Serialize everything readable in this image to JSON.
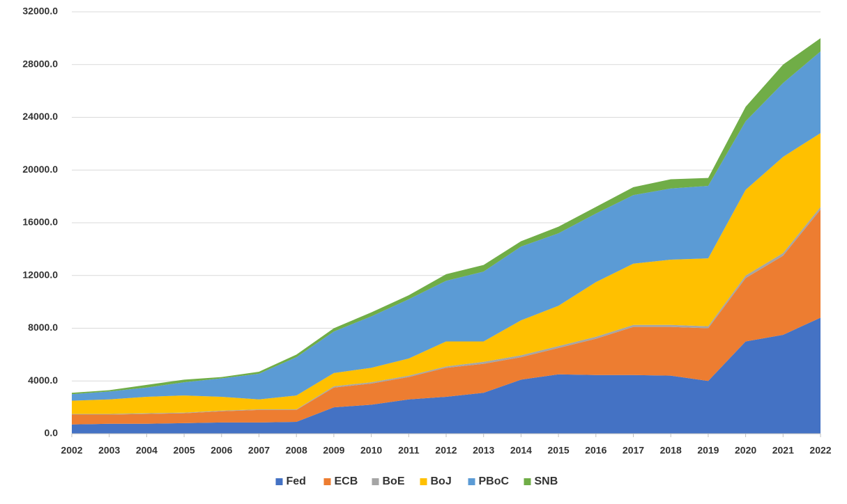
{
  "chart_data": {
    "type": "stacked_area",
    "x": [
      2002,
      2003,
      2004,
      2005,
      2006,
      2007,
      2008,
      2009,
      2010,
      2011,
      2012,
      2013,
      2014,
      2015,
      2016,
      2017,
      2018,
      2019,
      2020,
      2021,
      2022
    ],
    "xlim": [
      2002,
      2022
    ],
    "xticks": [
      2002,
      2003,
      2004,
      2005,
      2006,
      2007,
      2008,
      2009,
      2010,
      2011,
      2012,
      2013,
      2014,
      2015,
      2016,
      2017,
      2018,
      2019,
      2020,
      2021,
      2022
    ],
    "ylim": [
      0,
      32000
    ],
    "yticks": [
      {
        "value": 0,
        "label": "0.0"
      },
      {
        "value": 4000,
        "label": "4000.0"
      },
      {
        "value": 8000,
        "label": "8000.0"
      },
      {
        "value": 12000,
        "label": "12000.0"
      },
      {
        "value": 16000,
        "label": "16000.0"
      },
      {
        "value": 20000,
        "label": "20000.0"
      },
      {
        "value": 24000,
        "label": "24000.0"
      },
      {
        "value": 28000,
        "label": "28000.0"
      },
      {
        "value": 32000,
        "label": "32000.0"
      }
    ],
    "grid": true,
    "legend": "bottom",
    "series": [
      {
        "name": "Fed",
        "color": "#4472c4",
        "values": [
          700,
          750,
          750,
          800,
          850,
          850,
          900,
          2000,
          2200,
          2600,
          2800,
          3100,
          4100,
          4500,
          4450,
          4450,
          4400,
          4000,
          7000,
          7500,
          8800
        ]
      },
      {
        "name": "ECB",
        "color": "#ed7d31",
        "values": [
          750,
          700,
          750,
          750,
          850,
          950,
          900,
          1500,
          1600,
          1700,
          2200,
          2200,
          1700,
          2000,
          2750,
          3650,
          3700,
          4000,
          4800,
          6000,
          8200
        ]
      },
      {
        "name": "BoE",
        "color": "#a5a5a5",
        "values": [
          50,
          50,
          50,
          50,
          50,
          50,
          50,
          100,
          100,
          100,
          100,
          150,
          150,
          150,
          150,
          150,
          150,
          150,
          200,
          200,
          200
        ]
      },
      {
        "name": "BoJ",
        "color": "#ffc000",
        "values": [
          1000,
          1100,
          1250,
          1300,
          1050,
          750,
          1050,
          1000,
          1100,
          1300,
          1900,
          1550,
          2650,
          3050,
          4150,
          4650,
          4950,
          5150,
          6500,
          7300,
          5600
        ]
      },
      {
        "name": "PBoC",
        "color": "#5b9bd5",
        "values": [
          500,
          600,
          700,
          1000,
          1400,
          1950,
          2900,
          3150,
          3900,
          4500,
          4600,
          5300,
          5600,
          5500,
          5200,
          5200,
          5400,
          5500,
          5200,
          5600,
          6200
        ]
      },
      {
        "name": "SNB",
        "color": "#70ad47",
        "values": [
          100,
          100,
          200,
          200,
          100,
          150,
          200,
          250,
          300,
          300,
          500,
          500,
          400,
          500,
          500,
          600,
          700,
          600,
          1100,
          1400,
          1000
        ]
      }
    ]
  }
}
